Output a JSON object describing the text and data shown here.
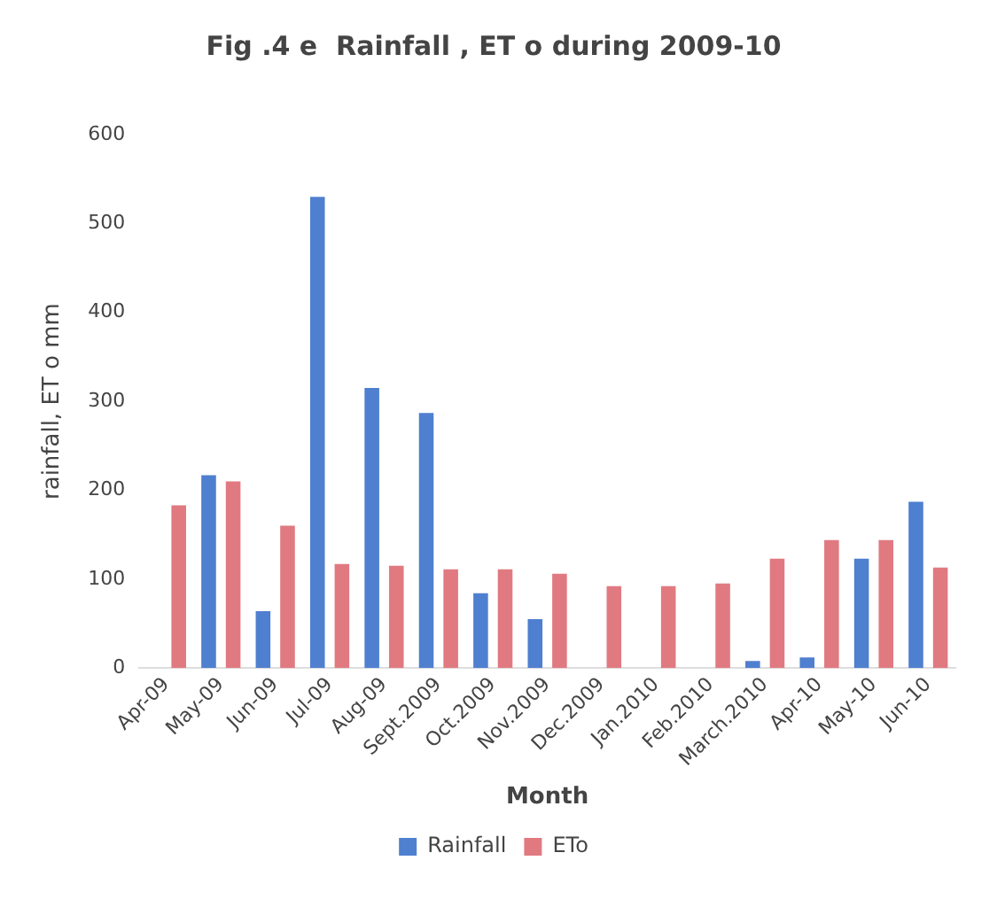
{
  "chart_data": {
    "type": "bar",
    "title": "Fig .4 e  Rainfall , ET o during 2009-10",
    "xlabel": "Month",
    "ylabel": "rainfall, ET o mm",
    "categories": [
      "Apr-09",
      "May-09",
      "Jun-09",
      "Jul-09",
      "Aug-09",
      "Sept.2009",
      "Oct.2009",
      "Nov.2009",
      "Dec.2009",
      "Jan.2010",
      "Feb.2010",
      "March.2010",
      "Apr-10",
      "May-10",
      "Jun-10"
    ],
    "series": [
      {
        "name": "Rainfall",
        "color": "#4f7fcf",
        "values": [
          0,
          217,
          64,
          530,
          315,
          287,
          84,
          55,
          0,
          0,
          0,
          8,
          12,
          123,
          187
        ]
      },
      {
        "name": "ETo",
        "color": "#e07a80",
        "values": [
          183,
          210,
          160,
          117,
          115,
          111,
          111,
          106,
          92,
          92,
          95,
          123,
          144,
          144,
          113
        ]
      }
    ],
    "ylim": [
      0,
      600
    ],
    "yticks": [
      0,
      100,
      200,
      300,
      400,
      500,
      600
    ],
    "grid": false,
    "legend": "bottom"
  }
}
